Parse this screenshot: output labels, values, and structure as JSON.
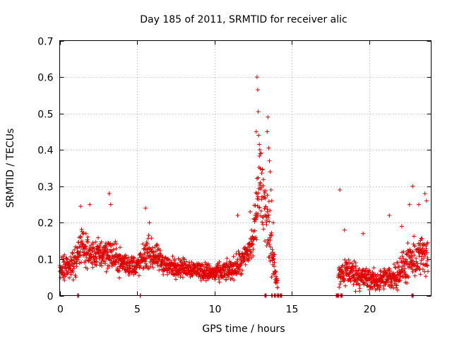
{
  "chart_data": {
    "type": "scatter",
    "title": "Day 185 of 2011, SRMTID for receiver alic",
    "xlabel": "GPS time / hours",
    "ylabel": "SRMTID / TECUs",
    "xlim": [
      0,
      24
    ],
    "ylim": [
      0,
      0.7
    ],
    "xticks": [
      0,
      5,
      10,
      15,
      20
    ],
    "xtick_labels": [
      "0",
      "5",
      "10",
      "15",
      "20"
    ],
    "yticks": [
      0,
      0.1,
      0.2,
      0.3,
      0.4,
      0.5,
      0.6,
      0.7
    ],
    "ytick_labels": [
      "0",
      "0.1",
      "0.2",
      "0.3",
      "0.4",
      "0.5",
      "0.6",
      "0.7"
    ],
    "grid": true,
    "marker": "+",
    "color": "#e00000",
    "series": [
      {
        "name": "SRMTID",
        "profile": [
          {
            "x": 0.0,
            "y": 0.07,
            "spread": 0.05
          },
          {
            "x": 1.0,
            "y": 0.09,
            "spread": 0.06
          },
          {
            "x": 1.3,
            "y": 0.14,
            "spread": 0.07
          },
          {
            "x": 2.0,
            "y": 0.11,
            "spread": 0.05
          },
          {
            "x": 3.0,
            "y": 0.12,
            "spread": 0.07
          },
          {
            "x": 4.0,
            "y": 0.09,
            "spread": 0.05
          },
          {
            "x": 5.0,
            "y": 0.08,
            "spread": 0.04
          },
          {
            "x": 5.7,
            "y": 0.12,
            "spread": 0.06
          },
          {
            "x": 7.0,
            "y": 0.08,
            "spread": 0.04
          },
          {
            "x": 8.5,
            "y": 0.075,
            "spread": 0.035
          },
          {
            "x": 10.0,
            "y": 0.06,
            "spread": 0.035
          },
          {
            "x": 11.0,
            "y": 0.07,
            "spread": 0.04
          },
          {
            "x": 11.8,
            "y": 0.09,
            "spread": 0.05
          },
          {
            "x": 12.5,
            "y": 0.15,
            "spread": 0.08
          },
          {
            "x": 12.9,
            "y": 0.32,
            "spread": 0.14
          },
          {
            "x": 13.3,
            "y": 0.24,
            "spread": 0.14
          },
          {
            "x": 13.7,
            "y": 0.12,
            "spread": 0.1
          },
          {
            "x": 14.1,
            "y": 0.02,
            "spread": 0.02
          }
        ],
        "profile2": [
          {
            "x": 18.0,
            "y": 0.05,
            "spread": 0.05
          },
          {
            "x": 18.5,
            "y": 0.07,
            "spread": 0.06
          },
          {
            "x": 19.5,
            "y": 0.05,
            "spread": 0.05
          },
          {
            "x": 20.5,
            "y": 0.04,
            "spread": 0.04
          },
          {
            "x": 21.5,
            "y": 0.05,
            "spread": 0.05
          },
          {
            "x": 22.3,
            "y": 0.08,
            "spread": 0.07
          },
          {
            "x": 23.0,
            "y": 0.1,
            "spread": 0.08
          },
          {
            "x": 23.8,
            "y": 0.12,
            "spread": 0.09
          }
        ],
        "peaks": [
          {
            "x": 1.35,
            "y": 0.245
          },
          {
            "x": 1.95,
            "y": 0.25
          },
          {
            "x": 3.2,
            "y": 0.28
          },
          {
            "x": 3.3,
            "y": 0.25
          },
          {
            "x": 5.55,
            "y": 0.24
          },
          {
            "x": 5.8,
            "y": 0.2
          },
          {
            "x": 11.5,
            "y": 0.22
          },
          {
            "x": 12.3,
            "y": 0.23
          },
          {
            "x": 12.7,
            "y": 0.45
          },
          {
            "x": 12.75,
            "y": 0.6
          },
          {
            "x": 12.8,
            "y": 0.565
          },
          {
            "x": 12.83,
            "y": 0.505
          },
          {
            "x": 12.85,
            "y": 0.44
          },
          {
            "x": 12.9,
            "y": 0.415
          },
          {
            "x": 12.95,
            "y": 0.31
          },
          {
            "x": 13.4,
            "y": 0.45
          },
          {
            "x": 13.45,
            "y": 0.49
          },
          {
            "x": 13.5,
            "y": 0.405
          },
          {
            "x": 13.55,
            "y": 0.37
          },
          {
            "x": 13.6,
            "y": 0.34
          },
          {
            "x": 13.65,
            "y": 0.29
          },
          {
            "x": 13.7,
            "y": 0.26
          },
          {
            "x": 13.8,
            "y": 0.2
          },
          {
            "x": 18.1,
            "y": 0.29
          },
          {
            "x": 18.4,
            "y": 0.18
          },
          {
            "x": 19.6,
            "y": 0.17
          },
          {
            "x": 21.3,
            "y": 0.22
          },
          {
            "x": 22.1,
            "y": 0.19
          },
          {
            "x": 22.6,
            "y": 0.25
          },
          {
            "x": 22.8,
            "y": 0.3
          },
          {
            "x": 23.2,
            "y": 0.25
          },
          {
            "x": 23.6,
            "y": 0.28
          },
          {
            "x": 23.7,
            "y": 0.26
          }
        ],
        "zeros": [
          1.2,
          5.2,
          13.3,
          13.7,
          13.9,
          14.1,
          14.3,
          17.9,
          18.0,
          18.2,
          22.8
        ]
      }
    ]
  }
}
